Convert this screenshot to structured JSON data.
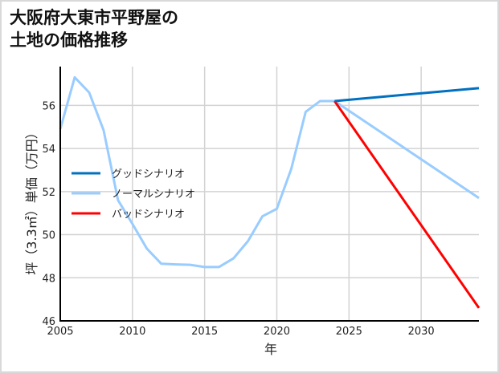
{
  "chart_data": {
    "type": "line",
    "title": "大阪府大東市平野屋の\n土地の価格推移",
    "xlabel": "年",
    "ylabel": "坪（3.3㎡）単価（万円）",
    "xlim": [
      2005,
      2034
    ],
    "ylim": [
      46,
      57.8
    ],
    "x_ticks": [
      2005,
      2010,
      2015,
      2020,
      2025,
      2030
    ],
    "y_ticks": [
      46,
      48,
      50,
      52,
      54,
      56
    ],
    "grid": true,
    "legend_position": "center-left",
    "historical": {
      "x": [
        2005,
        2006,
        2007,
        2008,
        2009,
        2010,
        2011,
        2012,
        2013,
        2014,
        2015,
        2016,
        2017,
        2018,
        2019,
        2020,
        2021,
        2022,
        2023,
        2024
      ],
      "values": [
        54.9,
        57.3,
        56.6,
        54.85,
        51.6,
        50.5,
        49.35,
        48.65,
        48.62,
        48.6,
        48.5,
        48.5,
        48.9,
        49.7,
        50.85,
        51.2,
        53.05,
        55.7,
        56.2,
        56.2
      ],
      "color": "#99ccff"
    },
    "series": [
      {
        "name": "グッドシナリオ",
        "x": [
          2024,
          2034
        ],
        "values": [
          56.2,
          56.8
        ],
        "color": "#0070c0"
      },
      {
        "name": "ノーマルシナリオ",
        "x": [
          2024,
          2034
        ],
        "values": [
          56.2,
          51.7
        ],
        "color": "#99ccff"
      },
      {
        "name": "バッドシナリオ",
        "x": [
          2024,
          2034
        ],
        "values": [
          56.2,
          46.6
        ],
        "color": "#ff0000"
      }
    ]
  }
}
